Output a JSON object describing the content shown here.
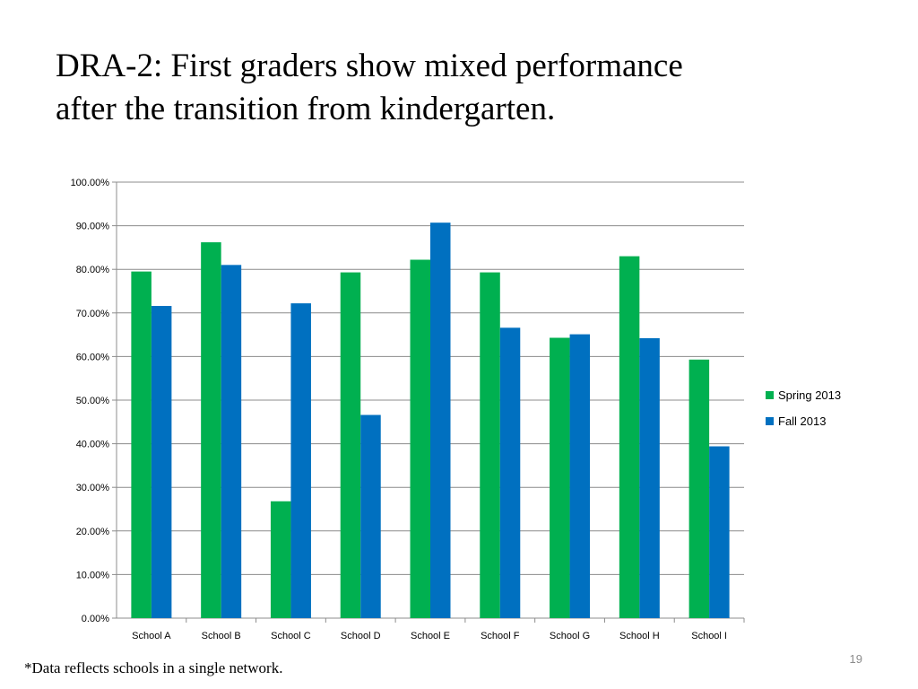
{
  "slide": {
    "title_lines": [
      "DRA-2: First graders show mixed performance",
      "after the transition from kindergarten."
    ],
    "footnote": "*Data reflects schools in a single network.",
    "page_number": "19"
  },
  "chart_data": {
    "type": "bar",
    "title": "",
    "xlabel": "",
    "ylabel": "",
    "categories": [
      "School A",
      "School B",
      "School C",
      "School D",
      "School E",
      "School F",
      "School G",
      "School H",
      "School I"
    ],
    "series": [
      {
        "name": "Spring 2013",
        "color": "#00b050",
        "values": [
          79.5,
          86.2,
          26.8,
          79.3,
          82.2,
          79.3,
          64.3,
          83.0,
          59.3
        ]
      },
      {
        "name": "Fall 2013",
        "color": "#0070c0",
        "values": [
          71.6,
          81.0,
          72.2,
          46.6,
          90.7,
          66.6,
          65.1,
          64.2,
          39.4
        ]
      }
    ],
    "ylim": [
      0,
      100
    ],
    "yticks": [
      "0.00%",
      "10.00%",
      "20.00%",
      "30.00%",
      "40.00%",
      "50.00%",
      "60.00%",
      "70.00%",
      "80.00%",
      "90.00%",
      "100.00%"
    ],
    "grid": true,
    "legend_position": "right"
  }
}
